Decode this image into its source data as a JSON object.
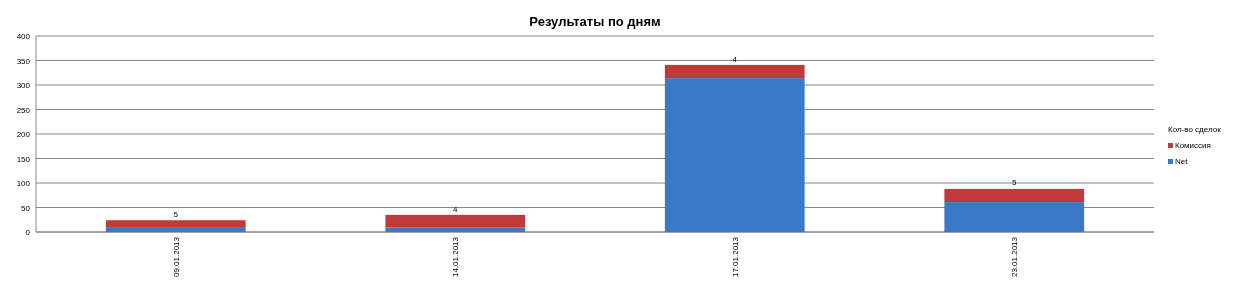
{
  "chart_data": {
    "type": "bar",
    "title": "Результаты по дням",
    "categories": [
      "09.01.2013",
      "14.01.2013",
      "17.01.2013",
      "23.01.2013"
    ],
    "stacked": true,
    "series": [
      {
        "name": "Net",
        "color": "#3a78c8",
        "values": [
          10,
          9,
          314,
          61
        ]
      },
      {
        "name": "Комиссия",
        "color": "#c0393b",
        "values": [
          14,
          26,
          27,
          27
        ]
      }
    ],
    "annotations": [
      {
        "text": "5",
        "x": "09.01.2013",
        "y": 29
      },
      {
        "text": "4",
        "x": "14.01.2013",
        "y": 39
      },
      {
        "text": "4",
        "x": "17.01.2013",
        "y": 345
      },
      {
        "text": "5",
        "x": "23.01.2013",
        "y": 93
      }
    ],
    "legend_title": "Кол-во сделок",
    "legend": "right",
    "ylim": [
      0,
      400
    ],
    "yticks": [
      0,
      50,
      100,
      150,
      200,
      250,
      300,
      350,
      400
    ],
    "grid": "y"
  }
}
